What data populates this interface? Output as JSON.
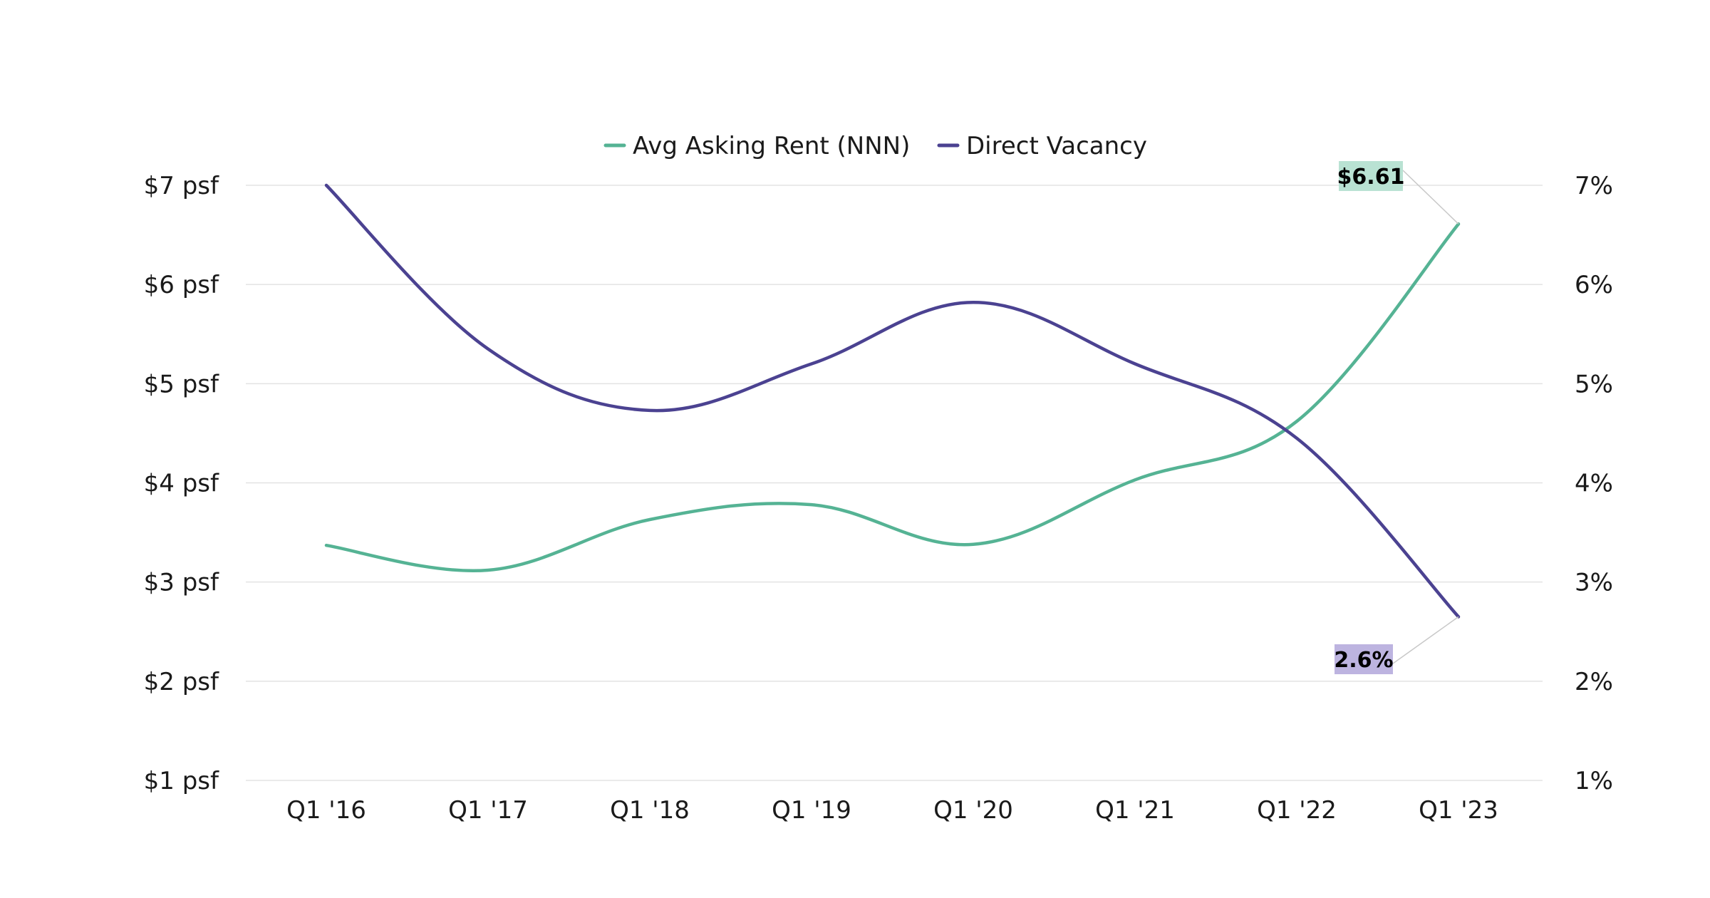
{
  "chart_data": {
    "type": "line",
    "title": "",
    "xlabel": "",
    "ylabel": "",
    "categories": [
      "Q1 '16",
      "Q1 '17",
      "Q1 '18",
      "Q1 '19",
      "Q1 '20",
      "Q1 '21",
      "Q1 '22",
      "Q1 '23"
    ],
    "ylim_left": [
      1,
      7
    ],
    "ylim_right": [
      1,
      7
    ],
    "left_ticks": [
      {
        "value": 7,
        "label": "$7 psf"
      },
      {
        "value": 6,
        "label": "$6 psf"
      },
      {
        "value": 5,
        "label": "$5 psf"
      },
      {
        "value": 4,
        "label": "$4 psf"
      },
      {
        "value": 3,
        "label": "$3 psf"
      },
      {
        "value": 2,
        "label": "$2 psf"
      },
      {
        "value": 1,
        "label": "$1 psf"
      }
    ],
    "right_ticks": [
      {
        "value": 7,
        "label": "7%"
      },
      {
        "value": 6,
        "label": "6%"
      },
      {
        "value": 5,
        "label": "5%"
      },
      {
        "value": 4,
        "label": "4%"
      },
      {
        "value": 3,
        "label": "3%"
      },
      {
        "value": 2,
        "label": "2%"
      },
      {
        "value": 1,
        "label": "1%"
      }
    ],
    "grid": true,
    "legend_position": "top-center",
    "series": [
      {
        "name": "Avg Asking Rent (NNN)",
        "axis": "left",
        "color": "#55b394",
        "values": [
          3.37,
          3.12,
          3.63,
          3.78,
          3.38,
          4.03,
          4.62,
          6.61
        ],
        "end_label": "$6.61",
        "label_bg": "#b9e2d3"
      },
      {
        "name": "Direct Vacancy",
        "axis": "right",
        "color": "#4b4291",
        "values": [
          7.0,
          5.35,
          4.73,
          5.2,
          5.82,
          5.2,
          4.45,
          2.65
        ],
        "end_label": "2.6%",
        "label_bg": "#bdb4e0"
      }
    ]
  }
}
